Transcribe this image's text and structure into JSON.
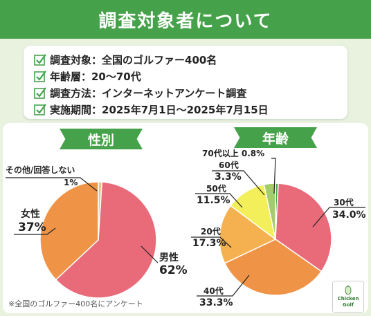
{
  "title": "調査対象者について",
  "survey_info": [
    "調査対象：全国のゴルファー400名",
    "年齢層：20〜70代",
    "調査方法：インターネットアンケート調査",
    "実施期間：2025年7月1日〜2025年7月15日"
  ],
  "footnote": "※全国のゴルファー400名にアンケート",
  "logo": {
    "line1": "Chicken",
    "line2": "Golf"
  },
  "colors": {
    "green": "#46a24a",
    "pink": "#e96a79",
    "orange": "#ef9447",
    "light_orange": "#f5b04f",
    "yellow": "#f2ef5a",
    "light_green": "#a4cc6b",
    "tan": "#e9c28a"
  },
  "chart_data": [
    {
      "type": "pie",
      "title": "性別",
      "slices": [
        {
          "label": "男性",
          "value": 62,
          "display": "62%",
          "color": "#e96a79"
        },
        {
          "label": "女性",
          "value": 37,
          "display": "37%",
          "color": "#ef9447"
        },
        {
          "label": "その他/回答しない",
          "value": 1,
          "display": "1%",
          "color": "#e9c28a"
        }
      ]
    },
    {
      "type": "pie",
      "title": "年齢",
      "slices": [
        {
          "label": "30代",
          "value": 34.0,
          "display": "34.0%",
          "color": "#e96a79"
        },
        {
          "label": "40代",
          "value": 33.3,
          "display": "33.3%",
          "color": "#ef9447"
        },
        {
          "label": "20代",
          "value": 17.3,
          "display": "17.3%",
          "color": "#f5b04f"
        },
        {
          "label": "50代",
          "value": 11.5,
          "display": "11.5%",
          "color": "#f2ef5a"
        },
        {
          "label": "60代",
          "value": 3.3,
          "display": "3.3%",
          "color": "#a4cc6b"
        },
        {
          "label": "70代以上",
          "value": 0.8,
          "display": "0.8%",
          "color": "#46a24a"
        }
      ]
    }
  ]
}
